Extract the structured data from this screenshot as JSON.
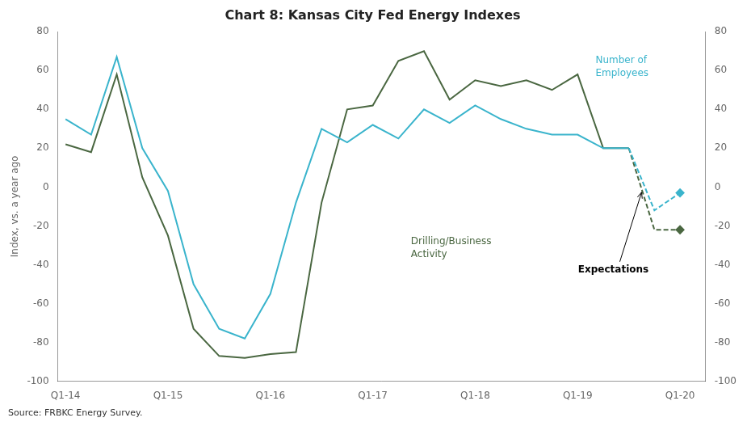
{
  "chart_data": {
    "type": "line",
    "title": "Chart 8: Kansas City Fed Energy Indexes",
    "ylabel": "Index, vs. a year ago",
    "annotations": [
      "Expectations",
      "Source: FRBKC Energy Survey."
    ],
    "x": [
      0,
      1,
      2,
      3,
      4,
      5,
      6,
      7,
      8,
      9,
      10,
      11,
      12,
      13,
      14,
      15,
      16,
      17,
      18,
      19,
      20,
      21,
      22,
      23,
      24
    ],
    "xlim": [
      -0.3,
      25.0
    ],
    "xticks": [
      {
        "value": 0,
        "label": "Q1-14"
      },
      {
        "value": 4,
        "label": "Q1-15"
      },
      {
        "value": 8,
        "label": "Q1-16"
      },
      {
        "value": 12,
        "label": "Q1-17"
      },
      {
        "value": 16,
        "label": "Q1-18"
      },
      {
        "value": 20,
        "label": "Q1-19"
      },
      {
        "value": 24,
        "label": "Q1-20"
      }
    ],
    "ylim": [
      -100,
      80
    ],
    "yticks": [
      -100,
      -80,
      -60,
      -40,
      -20,
      0,
      20,
      40,
      60,
      80
    ],
    "y2lim": [
      -100,
      80
    ],
    "y2ticks": [
      -100,
      -80,
      -60,
      -40,
      -20,
      0,
      20,
      40,
      60,
      80
    ],
    "grid": false,
    "series": [
      {
        "name": "Number of\nEmployees",
        "color": "#3ab4cc",
        "line_style": "solid",
        "values": [
          35,
          27,
          67,
          20,
          -2,
          -50,
          -73,
          -78,
          -55,
          -8,
          30,
          23,
          32,
          25,
          40,
          33,
          42,
          35,
          30,
          27,
          27,
          20,
          20,
          null,
          null
        ]
      },
      {
        "name": "Drilling/Business\nActivity",
        "color": "#4a6741",
        "line_style": "solid",
        "values": [
          22,
          18,
          58,
          5,
          -25,
          -73,
          -87,
          -88,
          -86,
          -85,
          -8,
          40,
          42,
          65,
          70,
          45,
          55,
          52,
          55,
          50,
          58,
          20,
          20,
          null,
          null
        ]
      },
      {
        "color": "#3ab4cc",
        "line_style": "dashed",
        "marker": "diamond",
        "values": [
          null,
          null,
          null,
          null,
          null,
          null,
          null,
          null,
          null,
          null,
          null,
          null,
          null,
          null,
          null,
          null,
          null,
          null,
          null,
          null,
          null,
          null,
          20,
          -12,
          -3
        ]
      },
      {
        "color": "#4a6741",
        "line_style": "dashed",
        "marker": "diamond",
        "values": [
          null,
          null,
          null,
          null,
          null,
          null,
          null,
          null,
          null,
          null,
          null,
          null,
          null,
          null,
          null,
          null,
          null,
          null,
          null,
          null,
          null,
          null,
          20,
          -22,
          -22
        ]
      }
    ]
  }
}
